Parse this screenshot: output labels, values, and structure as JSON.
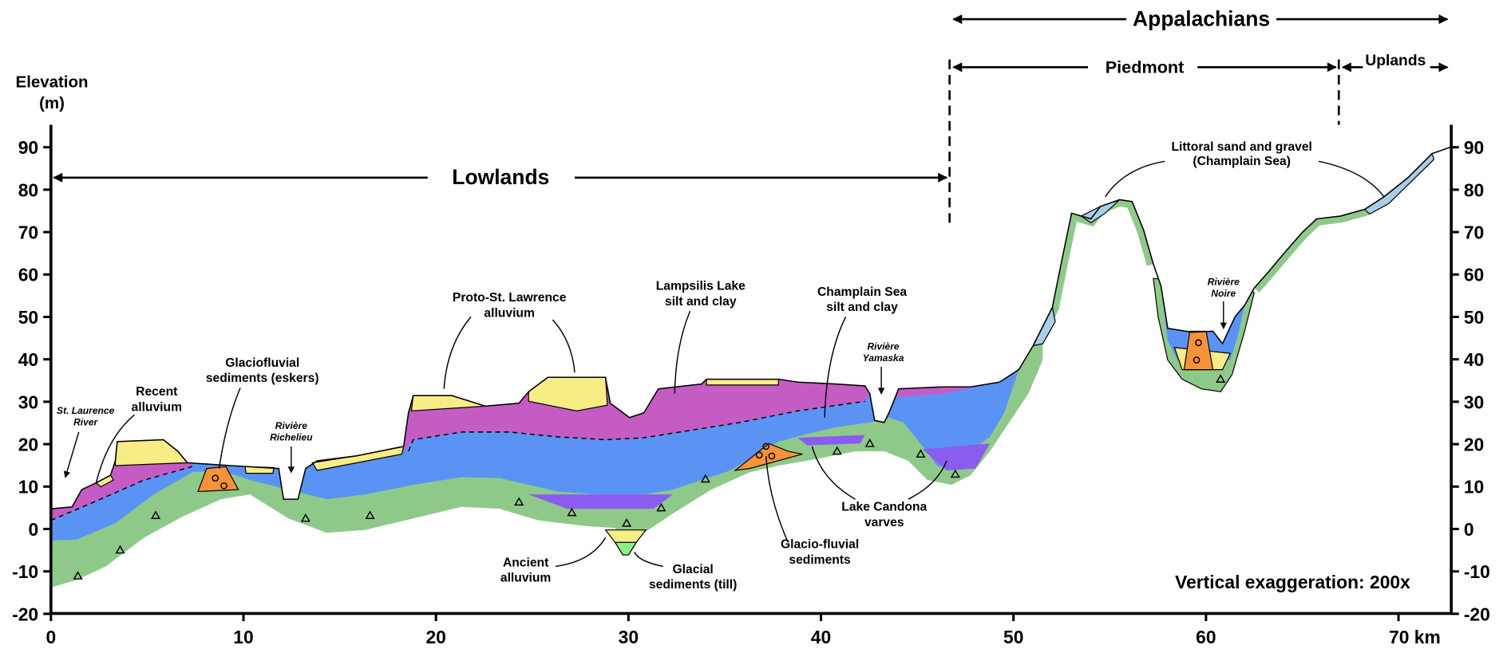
{
  "regions": {
    "appalachians": "Appalachians",
    "piedmont": "Piedmont",
    "uplands": "Uplands",
    "lowlands": "Lowlands"
  },
  "y_axis": {
    "label": [
      "Elevation",
      "(m)"
    ],
    "ticks": [
      90,
      80,
      70,
      60,
      50,
      40,
      30,
      20,
      10,
      0,
      -10,
      -20
    ]
  },
  "x_axis": {
    "ticks": [
      0,
      10,
      20,
      30,
      40,
      50,
      60,
      {
        "value": 70,
        "label": "70 km"
      }
    ]
  },
  "labels": [
    {
      "lines": [
        "Littoral sand and gravel",
        "(Champlain Sea)"
      ]
    },
    {
      "lines": [
        "Proto-St. Lawrence",
        "alluvium"
      ]
    },
    {
      "lines": [
        "Lampsilis Lake",
        "silt and clay"
      ]
    },
    {
      "lines": [
        "Champlain Sea",
        "silt and clay"
      ]
    },
    {
      "lines": [
        "Rivière",
        "Yamaska"
      ]
    },
    {
      "lines": [
        "Rivière",
        "Noire"
      ]
    },
    {
      "lines": [
        "Glaciofluvial",
        "sediments (eskers)"
      ]
    },
    {
      "lines": [
        "Recent",
        "alluvium"
      ]
    },
    {
      "lines": [
        "St. Laurence",
        "River"
      ]
    },
    {
      "lines": [
        "Rivière",
        "Richelieu"
      ]
    },
    {
      "lines": [
        "Lake Candona",
        "varves"
      ]
    },
    {
      "lines": [
        "Glacio-fluvial",
        "sediments"
      ]
    },
    {
      "lines": [
        "Ancient",
        "alluvium"
      ]
    },
    {
      "lines": [
        "Glacial",
        "sediments (till)"
      ]
    }
  ],
  "note": "Vertical exaggeration:  200x"
}
